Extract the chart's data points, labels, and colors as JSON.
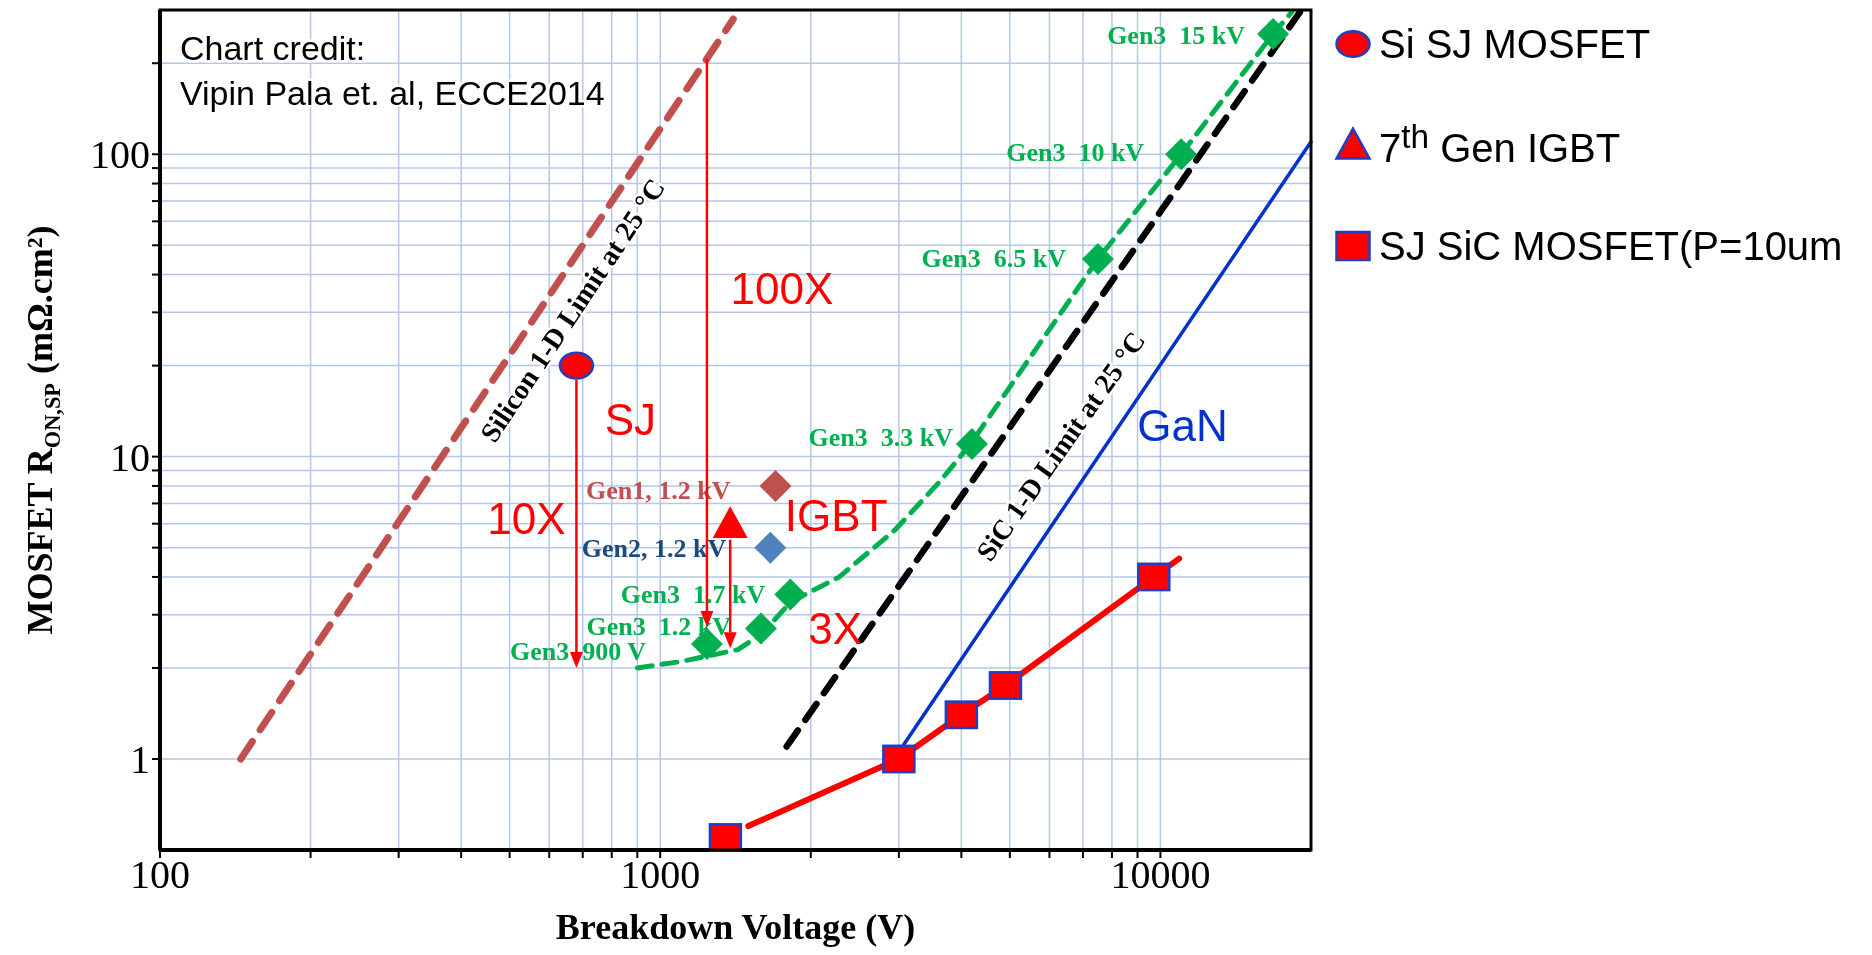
{
  "chart_data": {
    "type": "scatter",
    "xlabel": "Breakdown Voltage (V)",
    "ylabel": "MOSFET R$_{ON,SP}$ (mΩ.cm²)",
    "log": "xy",
    "xlim": [
      100,
      20000
    ],
    "ylim": [
      0.5,
      300
    ],
    "xticks": [
      100,
      {
        "value": 200,
        "label": null
      },
      {
        "value": 300,
        "label": null
      },
      {
        "value": 400,
        "label": null
      },
      {
        "value": 500,
        "label": null
      },
      {
        "value": 600,
        "label": null
      },
      {
        "value": 700,
        "label": null
      },
      {
        "value": 800,
        "label": null
      },
      {
        "value": 900,
        "label": null
      },
      1000,
      {
        "value": 2000,
        "label": null
      },
      {
        "value": 3000,
        "label": null
      },
      {
        "value": 4000,
        "label": null
      },
      {
        "value": 5000,
        "label": null
      },
      {
        "value": 6000,
        "label": null
      },
      {
        "value": 7000,
        "label": null
      },
      {
        "value": 8000,
        "label": null
      },
      {
        "value": 9000,
        "label": null
      },
      10000
    ],
    "yticks": [
      1,
      {
        "value": 2,
        "label": null
      },
      {
        "value": 3,
        "label": null
      },
      {
        "value": 4,
        "label": null
      },
      {
        "value": 5,
        "label": null
      },
      {
        "value": 6,
        "label": null
      },
      {
        "value": 7,
        "label": null
      },
      {
        "value": 8,
        "label": null
      },
      {
        "value": 9,
        "label": null
      },
      10,
      {
        "value": 20,
        "label": null
      },
      {
        "value": 30,
        "label": null
      },
      {
        "value": 40,
        "label": null
      },
      {
        "value": 50,
        "label": null
      },
      {
        "value": 60,
        "label": null
      },
      {
        "value": 70,
        "label": null
      },
      {
        "value": 80,
        "label": null
      },
      {
        "value": 90,
        "label": null
      },
      100,
      {
        "value": 200,
        "label": null
      }
    ],
    "grid": true,
    "legend": "top right",
    "series": [
      {
        "type": "line",
        "color": "#c0504d",
        "line_style": "dashed",
        "x": [
          145,
          1400
        ],
        "values": [
          1,
          280
        ]
      },
      {
        "type": "line",
        "color": "#000000",
        "line_style": "dashed",
        "x": [
          1790,
          19000
        ],
        "values": [
          1.1,
          295
        ]
      },
      {
        "type": "line",
        "color": "#0033cc",
        "line_style": "solid",
        "x": [
          3050,
          20000
        ],
        "values": [
          1.1,
          110
        ]
      },
      {
        "type": "line",
        "color": "#00b050",
        "line_style": "dashed",
        "x": [
          900,
          1100,
          1430,
          1600,
          1820,
          2280,
          2940,
          3630,
          4170,
          7500,
          11000,
          16800,
          18300
        ],
        "values": [
          2,
          2.1,
          2.3,
          2.6,
          3.3,
          4,
          5.7,
          8.3,
          11,
          45,
          100,
          250,
          295
        ]
      },
      {
        "color": "#00b050",
        "marker": "diamond",
        "x": [
          1240,
          1590,
          1820,
          4200,
          7500,
          11000,
          16800
        ],
        "values": [
          2.4,
          2.7,
          3.5,
          11,
          45,
          100,
          250
        ]
      },
      {
        "color": "#c0504d",
        "marker": "diamond",
        "x": [
          1700
        ],
        "values": [
          8
        ]
      },
      {
        "color": "#4f81bd",
        "marker": "diamond",
        "x": [
          1660
        ],
        "values": [
          5
        ]
      },
      {
        "name": "Si SJ MOSFET",
        "color": "#ff0000",
        "marker": "circle",
        "x": [
          680
        ],
        "values": [
          20
        ]
      },
      {
        "name": "7$^{th}$ Gen IGBT",
        "color": "#ff0000",
        "marker": "triangle",
        "x": [
          1380
        ],
        "values": [
          6
        ]
      },
      {
        "type": "line",
        "color": "#ff0000",
        "line_style": "solid",
        "x": [
          1500,
          3000,
          4000,
          4900,
          9700,
          10900
        ],
        "values": [
          0.6,
          1,
          1.4,
          1.75,
          4,
          4.6
        ]
      },
      {
        "name": "SJ SiC MOSFET(P=10um",
        "color": "#ff0000",
        "marker": "square",
        "x": [
          1350,
          3000,
          4000,
          4900,
          9700
        ],
        "values": [
          0.55,
          1,
          1.4,
          1.75,
          4
        ]
      }
    ],
    "annotations": [
      "Chart credit:",
      "Vipin Pala et. al, ECCE2014",
      "Silicon 1-D Limit at 25 °C",
      "SiC 1-D Limit at 25 °C",
      "GaN",
      {
        "text": "Gen3  900 V",
        "x": 1240,
        "y": 2.4
      },
      {
        "text": "Gen3  1.2 kV",
        "x": 1590,
        "y": 2.7
      },
      {
        "text": "Gen3  1.7 kV",
        "x": 1820,
        "y": 3.5
      },
      {
        "text": "Gen3  3.3 kV",
        "x": 4200,
        "y": 11
      },
      {
        "text": "Gen3  6.5 kV",
        "x": 7500,
        "y": 45
      },
      {
        "text": "Gen3  10 kV",
        "x": 11000,
        "y": 100
      },
      {
        "text": "Gen3  15 kV",
        "x": 16800,
        "y": 250
      },
      {
        "text": "Gen1, 1.2 kV",
        "x": 1700,
        "y": 8
      },
      {
        "text": "Gen2, 1.2 kV",
        "x": 1660,
        "y": 5
      },
      "SJ",
      "10X",
      "100X",
      "IGBT",
      "3X"
    ]
  }
}
